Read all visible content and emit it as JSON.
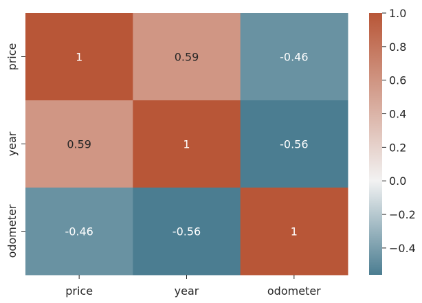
{
  "chart_data": {
    "type": "heatmap",
    "title": "",
    "xlabel": "",
    "ylabel": "",
    "x_categories": [
      "price",
      "year",
      "odometer"
    ],
    "y_categories": [
      "price",
      "year",
      "odometer"
    ],
    "values": [
      [
        1,
        0.59,
        -0.46
      ],
      [
        0.59,
        1,
        -0.56
      ],
      [
        -0.46,
        -0.56,
        1
      ]
    ],
    "cell_labels": [
      [
        "1",
        "0.59",
        "-0.46"
      ],
      [
        "0.59",
        "1",
        "-0.56"
      ],
      [
        "-0.46",
        "-0.56",
        "1"
      ]
    ],
    "colorbar": {
      "vmin": -0.56,
      "vmax": 1.0,
      "center": 0,
      "ticks": [
        1.0,
        0.8,
        0.6,
        0.4,
        0.2,
        0.0,
        -0.2,
        -0.4
      ],
      "tick_labels": [
        "1.0",
        "0.8",
        "0.6",
        "0.4",
        "0.2",
        "0.0",
        "−0.2",
        "−0.4"
      ]
    },
    "colormap": {
      "negative": "#4b7d91",
      "center": "#f2f2f2",
      "positive": "#b85637"
    },
    "grid": false,
    "legend": "colorbar-right"
  }
}
